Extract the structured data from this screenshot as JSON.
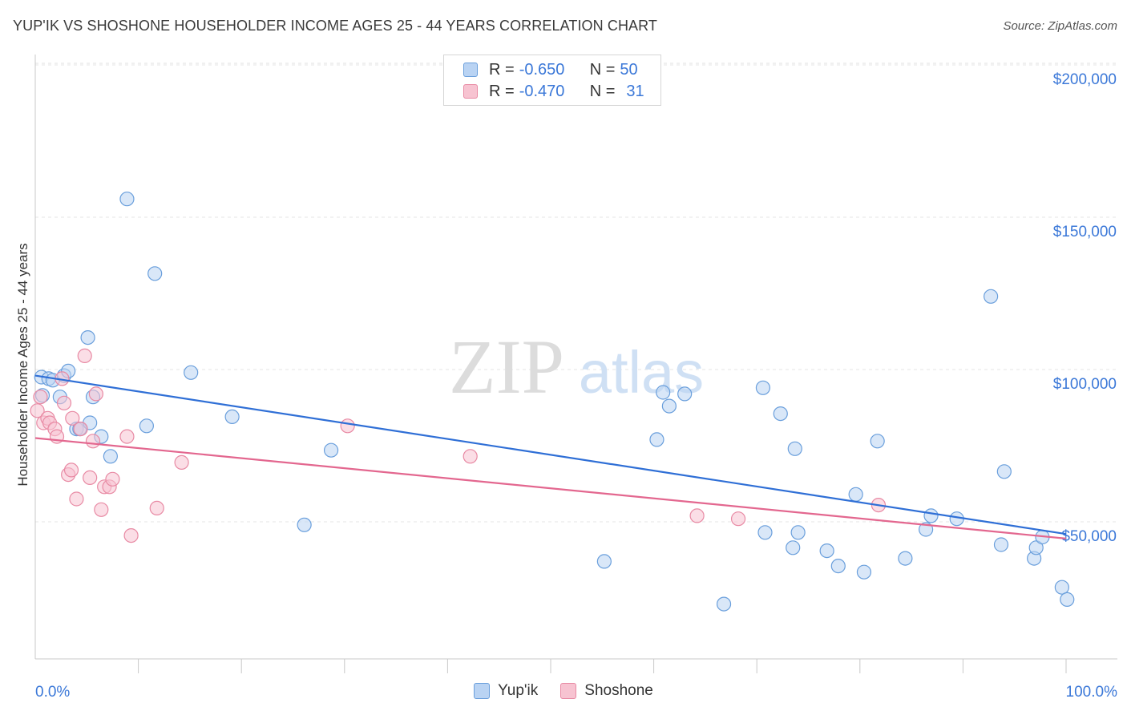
{
  "title": "YUP'IK VS SHOSHONE HOUSEHOLDER INCOME AGES 25 - 44 YEARS CORRELATION CHART",
  "source": "Source: ZipAtlas.com",
  "watermark": {
    "zip": "ZIP",
    "atlas": "atlas"
  },
  "legend": {
    "rows": [
      {
        "r_label": "R = ",
        "r_value": "-0.650",
        "n_label": "N = ",
        "n_value": "50",
        "color": "#a8c8f0",
        "border": "#6a9fdc"
      },
      {
        "r_label": "R = ",
        "r_value": "-0.470",
        "n_label": "N = ",
        "n_value": "31",
        "color": "#f7b8c8",
        "border": "#e88aa4"
      }
    ]
  },
  "chart_data": {
    "type": "scatter",
    "title": "YUP'IK VS SHOSHONE HOUSEHOLDER INCOME AGES 25 - 44 YEARS CORRELATION CHART",
    "xlabel": "",
    "ylabel": "Householder Income Ages 25 - 44 years",
    "xlim": [
      0,
      100
    ],
    "ylim": [
      5000,
      205000
    ],
    "x_tick_labels": [
      "0.0%",
      "100.0%"
    ],
    "y_ticks": [
      50000,
      100000,
      150000,
      200000
    ],
    "y_tick_labels": [
      "$50,000",
      "$100,000",
      "$150,000",
      "$200,000"
    ],
    "grid": "horizontal dashed",
    "legend_position": "bottom-center",
    "series": [
      {
        "name": "Yup'ik",
        "color": "#6a9fdc",
        "fill": "#b9d3f3",
        "trend": {
          "x0": 0,
          "y0": 98000,
          "x1": 100,
          "y1": 46000
        },
        "points": [
          [
            0.6,
            97500
          ],
          [
            0.7,
            91500
          ],
          [
            1.3,
            97000
          ],
          [
            1.7,
            96500
          ],
          [
            2.4,
            91000
          ],
          [
            2.8,
            98000
          ],
          [
            3.2,
            99500
          ],
          [
            4.0,
            80500
          ],
          [
            4.3,
            80500
          ],
          [
            5.1,
            110500
          ],
          [
            5.3,
            82500
          ],
          [
            5.6,
            91000
          ],
          [
            6.4,
            78000
          ],
          [
            7.3,
            71500
          ],
          [
            8.9,
            156000
          ],
          [
            10.8,
            81500
          ],
          [
            11.6,
            131500
          ],
          [
            15.1,
            99000
          ],
          [
            19.1,
            84500
          ],
          [
            26.1,
            49000
          ],
          [
            28.7,
            73500
          ],
          [
            55.2,
            37000
          ],
          [
            60.3,
            77000
          ],
          [
            60.9,
            92500
          ],
          [
            61.5,
            88000
          ],
          [
            63.0,
            92000
          ],
          [
            66.8,
            23000
          ],
          [
            70.6,
            94000
          ],
          [
            70.8,
            46500
          ],
          [
            72.3,
            85500
          ],
          [
            73.5,
            41500
          ],
          [
            73.7,
            74000
          ],
          [
            74.0,
            46500
          ],
          [
            76.8,
            40500
          ],
          [
            77.9,
            35500
          ],
          [
            79.6,
            59000
          ],
          [
            80.4,
            33500
          ],
          [
            81.7,
            76500
          ],
          [
            84.4,
            38000
          ],
          [
            86.4,
            47500
          ],
          [
            86.9,
            52000
          ],
          [
            89.4,
            51000
          ],
          [
            92.7,
            124000
          ],
          [
            93.7,
            42500
          ],
          [
            94.0,
            66500
          ],
          [
            96.9,
            38000
          ],
          [
            97.1,
            41500
          ],
          [
            97.7,
            45000
          ],
          [
            99.6,
            28500
          ],
          [
            100.1,
            24500
          ]
        ]
      },
      {
        "name": "Shoshone",
        "color": "#e88aa4",
        "fill": "#f7c3d1",
        "trend": {
          "x0": 0,
          "y0": 77500,
          "x1": 100,
          "y1": 44500
        },
        "points": [
          [
            0.2,
            86500
          ],
          [
            0.5,
            91000
          ],
          [
            0.8,
            82500
          ],
          [
            1.2,
            84000
          ],
          [
            1.4,
            82500
          ],
          [
            1.9,
            80500
          ],
          [
            2.1,
            78000
          ],
          [
            2.6,
            97000
          ],
          [
            2.8,
            89000
          ],
          [
            3.2,
            65500
          ],
          [
            3.5,
            67000
          ],
          [
            3.6,
            84000
          ],
          [
            4.0,
            57500
          ],
          [
            4.4,
            80500
          ],
          [
            4.8,
            104500
          ],
          [
            5.3,
            64500
          ],
          [
            5.6,
            76500
          ],
          [
            5.9,
            92000
          ],
          [
            6.4,
            54000
          ],
          [
            6.7,
            61500
          ],
          [
            7.2,
            61500
          ],
          [
            7.5,
            64000
          ],
          [
            8.9,
            78000
          ],
          [
            9.3,
            45500
          ],
          [
            11.8,
            54500
          ],
          [
            14.2,
            69500
          ],
          [
            30.3,
            81500
          ],
          [
            42.2,
            71500
          ],
          [
            64.2,
            52000
          ],
          [
            68.2,
            51000
          ],
          [
            81.8,
            55500
          ]
        ]
      }
    ]
  },
  "bottom_legend": [
    {
      "label": "Yup'ik",
      "color": "#b9d3f3",
      "border": "#6a9fdc"
    },
    {
      "label": "Shoshone",
      "color": "#f7c3d1",
      "border": "#e88aa4"
    }
  ]
}
